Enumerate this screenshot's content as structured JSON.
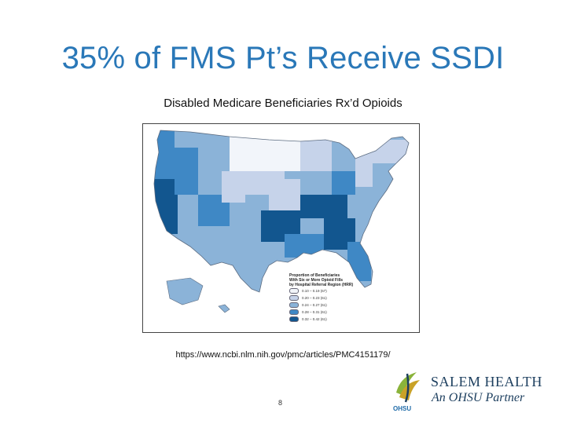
{
  "slide": {
    "title": "35% of FMS Pt’s Receive SSDI",
    "subtitle": "Disabled Medicare Beneficiaries Rx’d Opioids",
    "source_url": "https://www.ncbi.nlm.nih.gov/pmc/articles/PMC4151179/",
    "page_number": "8"
  },
  "map": {
    "legend_title_lines": [
      "Proportion of Beneficiaries",
      "With Six or More Opioid Fills",
      "by Hospital Referral Region (HRR)"
    ],
    "legend": [
      {
        "label": "0.10 – 0.19 (67)",
        "color": "#f2f5fa"
      },
      {
        "label": "0.20 – 0.23 (61)",
        "color": "#c6d3ea"
      },
      {
        "label": "0.24 – 0.27 (61)",
        "color": "#8bb3d8"
      },
      {
        "label": "0.28 – 0.31 (61)",
        "color": "#3f88c5"
      },
      {
        "label": "0.32 – 0.42 (61)",
        "color": "#12568f"
      }
    ]
  },
  "logo": {
    "name": "SALEM HEALTH",
    "tagline": "An OHSU Partner",
    "mark_text": "OHSU",
    "colors": {
      "green": "#8ab33a",
      "gold": "#c9a227",
      "navy": "#1c3e5e"
    }
  }
}
